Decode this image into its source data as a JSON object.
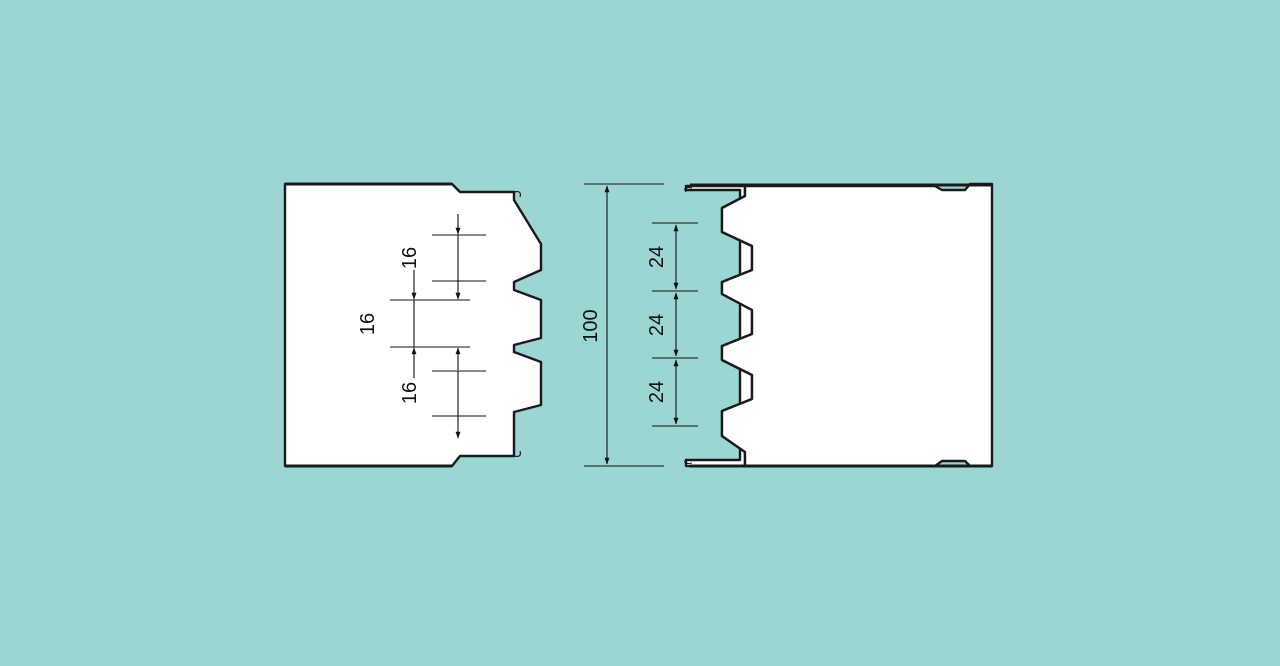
{
  "left_panel": {
    "dimensions": [
      "16",
      "16",
      "16"
    ]
  },
  "right_panel": {
    "dimensions": [
      "24",
      "24",
      "24"
    ]
  },
  "overall_dimension": "100",
  "colors": {
    "background": "#9BD6D3",
    "panel": "#ffffff",
    "line": "#1a1a1a"
  }
}
